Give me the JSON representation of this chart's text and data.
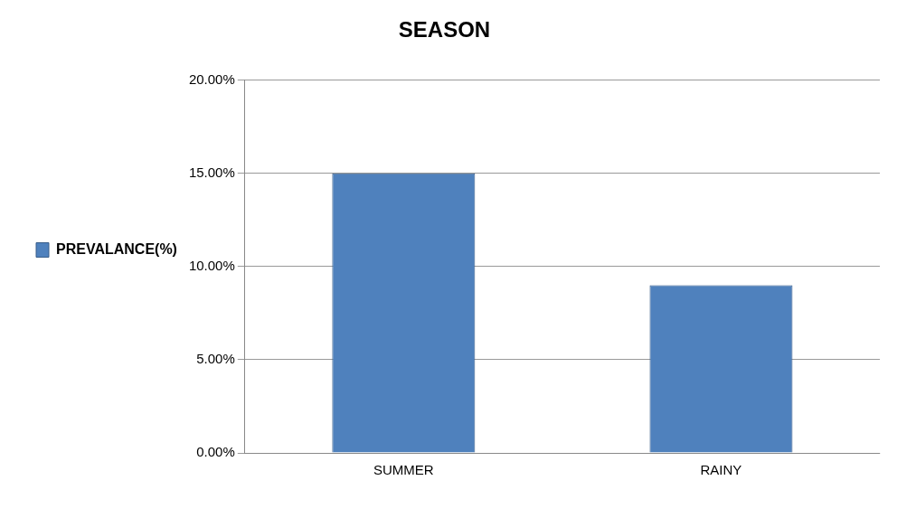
{
  "chart_data": {
    "type": "bar",
    "title": "SEASON",
    "categories": [
      "SUMMER",
      "RAINY"
    ],
    "series": [
      {
        "name": "PREVALANCE(%)",
        "color": "#4f81bd",
        "values": [
          15,
          9
        ]
      }
    ],
    "ylim": [
      0,
      20
    ],
    "yticks": [
      {
        "value": 0,
        "label": "0.00%"
      },
      {
        "value": 5,
        "label": "5.00%"
      },
      {
        "value": 10,
        "label": "10.00%"
      },
      {
        "value": 15,
        "label": "15.00%"
      },
      {
        "value": 20,
        "label": "20.00%"
      }
    ],
    "grid": "y",
    "legend": "left"
  }
}
